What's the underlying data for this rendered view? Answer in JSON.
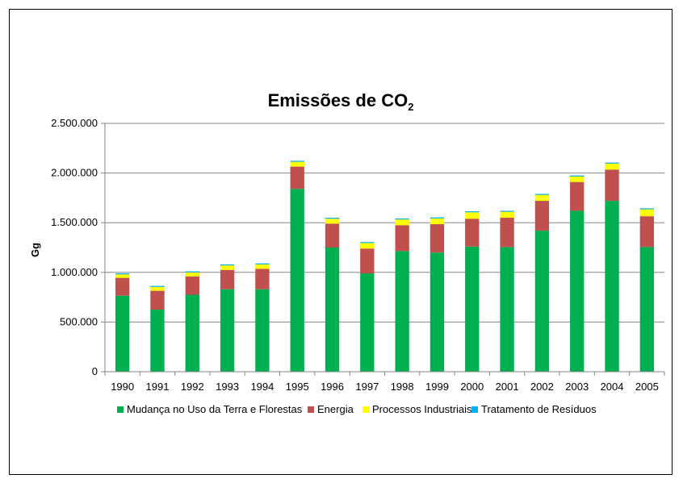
{
  "chart_data": {
    "type": "bar",
    "stacked": true,
    "title": "Emissões de CO",
    "title_subscript": "2",
    "xlabel": "",
    "ylabel": "Gg",
    "ylim": [
      0,
      2500000
    ],
    "yticks": [
      0,
      500000,
      1000000,
      1500000,
      2000000,
      2500000
    ],
    "ytick_labels": [
      "0",
      "500.000",
      "1.000.000",
      "1.500.000",
      "2.000.000",
      "2.500.000"
    ],
    "grid": true,
    "legend_position": "bottom",
    "categories": [
      "1990",
      "1991",
      "1992",
      "1993",
      "1994",
      "1995",
      "1996",
      "1997",
      "1998",
      "1999",
      "2000",
      "2001",
      "2002",
      "2003",
      "2004",
      "2005"
    ],
    "series": [
      {
        "name": "Mudança no Uso da Terra e Florestas",
        "color": "#00b050",
        "values": [
          765000,
          625000,
          775000,
          830000,
          830000,
          1840000,
          1250000,
          990000,
          1215000,
          1200000,
          1260000,
          1255000,
          1420000,
          1620000,
          1720000,
          1255000
        ]
      },
      {
        "name": "Energia",
        "color": "#c0504d",
        "values": [
          180000,
          190000,
          185000,
          195000,
          205000,
          225000,
          240000,
          250000,
          260000,
          285000,
          280000,
          295000,
          300000,
          290000,
          315000,
          310000
        ]
      },
      {
        "name": "Processos Industriais",
        "color": "#ffff00",
        "values": [
          35000,
          38000,
          40000,
          45000,
          45000,
          48000,
          50000,
          55000,
          57000,
          58000,
          65000,
          60000,
          60000,
          55000,
          60000,
          70000
        ]
      },
      {
        "name": "Tratamento de Resíduos",
        "color": "#00b0f0",
        "values": [
          10000,
          10000,
          10000,
          10000,
          10000,
          10000,
          10000,
          10000,
          10000,
          10000,
          10000,
          10000,
          10000,
          10000,
          10000,
          10000
        ]
      }
    ]
  }
}
